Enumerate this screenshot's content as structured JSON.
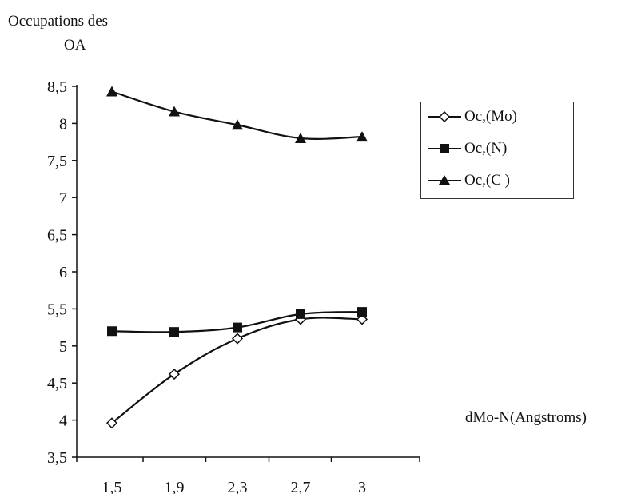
{
  "chart_data": {
    "type": "line",
    "ylabel": "Occupations des OA",
    "ylabel_lines": [
      "Occupations des",
      "OA"
    ],
    "xlabel": "dMo-N(Angstroms)",
    "categories": [
      "1,5",
      "1,9",
      "2,3",
      "2,7",
      "3"
    ],
    "ylim": [
      3.5,
      8.5
    ],
    "yticks": [
      {
        "value": 3.5,
        "label": "3,5"
      },
      {
        "value": 4,
        "label": "4"
      },
      {
        "value": 4.5,
        "label": "4,5"
      },
      {
        "value": 5,
        "label": "5"
      },
      {
        "value": 5.5,
        "label": "5,5"
      },
      {
        "value": 6,
        "label": "6"
      },
      {
        "value": 6.5,
        "label": "6,5"
      },
      {
        "value": 7,
        "label": "7"
      },
      {
        "value": 7.5,
        "label": "7,5"
      },
      {
        "value": 8,
        "label": "8"
      },
      {
        "value": 8.5,
        "label": "8,5"
      }
    ],
    "grid": false,
    "legend_position": "right",
    "series": [
      {
        "name": "Oc,(Mo)",
        "marker": "diamond-open",
        "values": [
          3.96,
          4.62,
          5.1,
          5.36,
          5.36
        ]
      },
      {
        "name": "Oc,(N)",
        "marker": "square-filled",
        "values": [
          5.2,
          5.19,
          5.25,
          5.43,
          5.46
        ]
      },
      {
        "name": "Oc,(C )",
        "marker": "triangle-filled",
        "values": [
          8.43,
          8.16,
          7.98,
          7.8,
          7.82
        ]
      }
    ]
  }
}
